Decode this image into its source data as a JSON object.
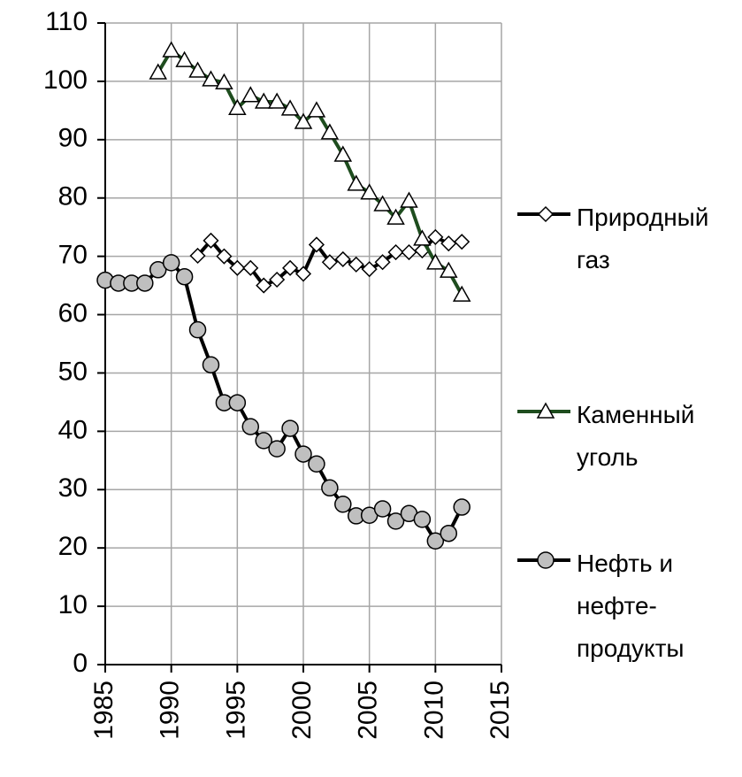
{
  "chart_data": {
    "type": "line",
    "x": [
      1985,
      1986,
      1987,
      1988,
      1989,
      1990,
      1991,
      1992,
      1993,
      1994,
      1995,
      1996,
      1997,
      1998,
      1999,
      2000,
      2001,
      2002,
      2003,
      2004,
      2005,
      2006,
      2007,
      2008,
      2009,
      2010,
      2011,
      2012
    ],
    "series": [
      {
        "name": "Природный газ",
        "color": "#000000",
        "marker": "diamond",
        "marker_fill": "#ffffff",
        "values": [
          null,
          null,
          null,
          null,
          null,
          null,
          null,
          70.1,
          72.7,
          70,
          68,
          68,
          65,
          66,
          68,
          67,
          72,
          69,
          69.5,
          68.6,
          67.8,
          69,
          70.7,
          70.7,
          71,
          73.3,
          72.2,
          72.5
        ]
      },
      {
        "name": "Каменный уголь",
        "color": "#1e4d1e",
        "marker": "triangle",
        "marker_fill": "#ffffff",
        "values": [
          null,
          null,
          null,
          null,
          101.5,
          105.3,
          103.6,
          101.8,
          100.3,
          99.8,
          95.4,
          97.6,
          96.5,
          96.5,
          95.3,
          93,
          95,
          91.2,
          87.4,
          82.4,
          80.9,
          78.9,
          76.6,
          79.5,
          73,
          68.9,
          67.5,
          63.4
        ]
      },
      {
        "name": "Нефть и нефте-продукты",
        "color": "#000000",
        "marker": "circle",
        "marker_fill": "#bfbfbf",
        "values": [
          65.9,
          65.4,
          65.4,
          65.4,
          67.7,
          68.9,
          66.5,
          57.4,
          51.4,
          44.9,
          44.9,
          40.8,
          38.4,
          37,
          40.5,
          36.1,
          34.4,
          30.3,
          27.5,
          25.5,
          25.6,
          26.7,
          24.6,
          25.9,
          24.9,
          21.2,
          22.5,
          27
        ]
      }
    ],
    "xlim": [
      1985,
      2015
    ],
    "xticks": [
      1985,
      1990,
      1995,
      2000,
      2005,
      2010,
      2015
    ],
    "ylim": [
      0,
      110
    ],
    "yticks": [
      0,
      10,
      20,
      30,
      40,
      50,
      60,
      70,
      80,
      90,
      100,
      110
    ],
    "grid": true,
    "legend": "right"
  }
}
